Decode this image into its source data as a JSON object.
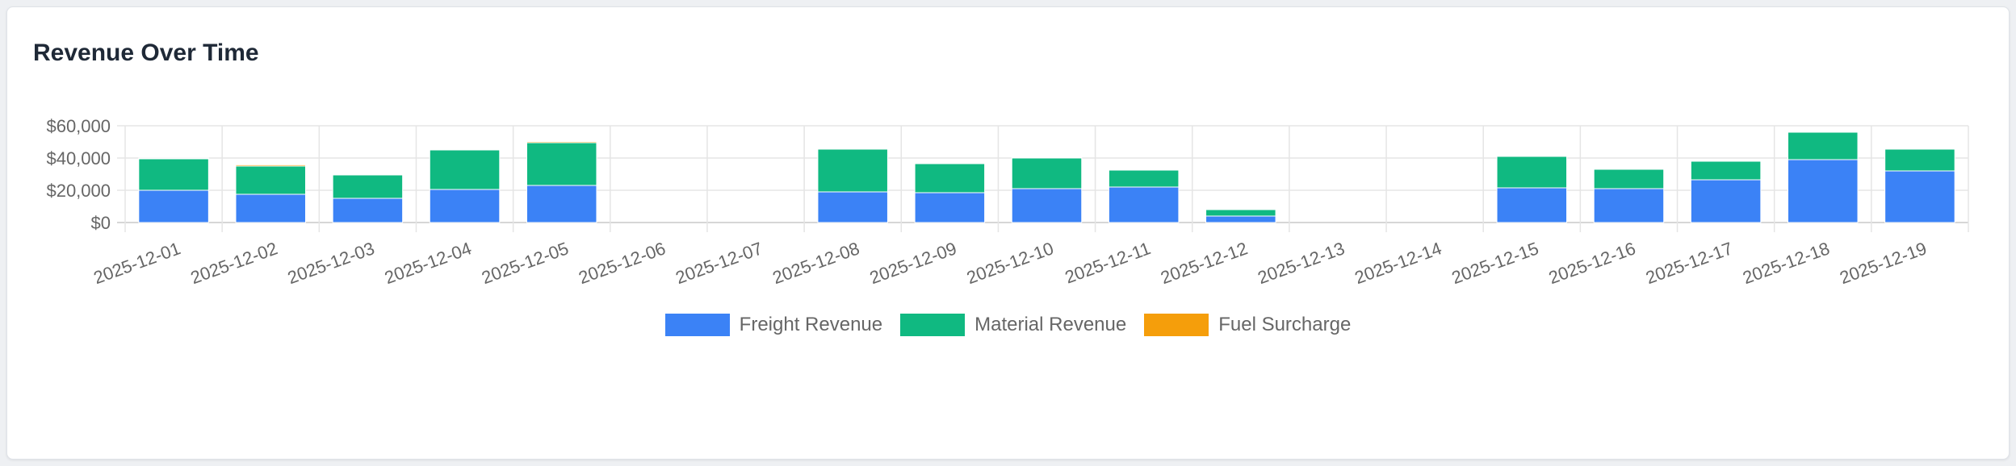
{
  "card": {
    "title": "Revenue Over Time"
  },
  "chart_data": {
    "type": "bar",
    "stacked": true,
    "categories": [
      "2025-12-01",
      "2025-12-02",
      "2025-12-03",
      "2025-12-04",
      "2025-12-05",
      "2025-12-06",
      "2025-12-07",
      "2025-12-08",
      "2025-12-09",
      "2025-12-10",
      "2025-12-11",
      "2025-12-12",
      "2025-12-13",
      "2025-12-14",
      "2025-12-15",
      "2025-12-16",
      "2025-12-17",
      "2025-12-18",
      "2025-12-19"
    ],
    "series": [
      {
        "name": "Freight Revenue",
        "color": "#3b82f6",
        "values": [
          20000,
          17500,
          15000,
          20500,
          23000,
          0,
          0,
          19000,
          18500,
          21000,
          22000,
          4000,
          0,
          0,
          21500,
          21000,
          26500,
          39000,
          32000
        ]
      },
      {
        "name": "Material Revenue",
        "color": "#10b981",
        "values": [
          19500,
          17500,
          14500,
          24500,
          26500,
          0,
          0,
          26500,
          18000,
          19000,
          10500,
          4000,
          0,
          0,
          19500,
          12000,
          11500,
          17000,
          13500
        ]
      },
      {
        "name": "Fuel Surcharge",
        "color": "#f59e0b",
        "values": [
          500,
          800,
          300,
          500,
          700,
          0,
          0,
          500,
          500,
          400,
          200,
          0,
          0,
          0,
          200,
          300,
          300,
          400,
          300
        ]
      }
    ],
    "yticks": [
      "$0",
      "$20,000",
      "$40,000",
      "$60,000"
    ],
    "ylim": [
      0,
      60000
    ],
    "grid": true,
    "legend": "bottom",
    "xlabel": "",
    "ylabel": ""
  }
}
